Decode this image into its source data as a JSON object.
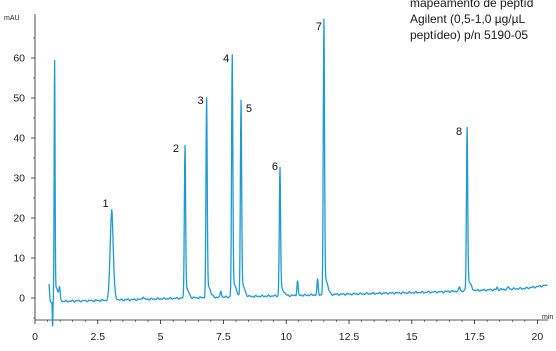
{
  "note": {
    "lines": [
      "mapeamento de peptíd",
      "Agilent (0,5-1,0 µg/µL",
      "peptídeo) p/n 5190-05"
    ]
  },
  "chart_data": {
    "type": "line",
    "xlabel": "min",
    "ylabel": "mAU",
    "xlim": [
      0,
      20.5
    ],
    "ylim": [
      -7.5,
      67
    ],
    "xticks": [
      "0",
      "2.5",
      "5",
      "7.5",
      "10",
      "12.5",
      "15",
      "17.5",
      "20"
    ],
    "yticks": [
      "0",
      "10",
      "20",
      "30",
      "40",
      "50",
      "60"
    ],
    "series_color": "#1e9ad6",
    "baseline": [
      {
        "x": 0.0,
        "y": -1.0
      },
      {
        "x": 2.0,
        "y": -0.7
      },
      {
        "x": 4.0,
        "y": -0.4
      },
      {
        "x": 6.0,
        "y": 0.0
      },
      {
        "x": 8.0,
        "y": 0.3
      },
      {
        "x": 10.0,
        "y": 0.6
      },
      {
        "x": 12.0,
        "y": 0.9
      },
      {
        "x": 14.0,
        "y": 1.2
      },
      {
        "x": 16.0,
        "y": 1.5
      },
      {
        "x": 18.0,
        "y": 2.0
      },
      {
        "x": 19.5,
        "y": 2.4
      },
      {
        "x": 20.4,
        "y": 3.2
      }
    ],
    "peaks": [
      {
        "label": "",
        "x": 0.78,
        "y": 57
      },
      {
        "label": "1",
        "x": 3.05,
        "y": 21
      },
      {
        "label": "2",
        "x": 5.97,
        "y": 37
      },
      {
        "label": "3",
        "x": 6.83,
        "y": 48
      },
      {
        "label": "4",
        "x": 7.85,
        "y": 58.5
      },
      {
        "label": "5",
        "x": 8.2,
        "y": 47.5
      },
      {
        "label": "6",
        "x": 9.75,
        "y": 31.5
      },
      {
        "label": "7",
        "x": 11.5,
        "y": 66.5
      },
      {
        "label": "8",
        "x": 17.2,
        "y": 41
      }
    ],
    "minor_peaks": [
      {
        "x": 0.55,
        "y": 3.5
      },
      {
        "x": 0.98,
        "y": 1.5
      },
      {
        "x": 4.3,
        "y": 0.4
      },
      {
        "x": 7.4,
        "y": 1.8
      },
      {
        "x": 10.45,
        "y": 4.2
      },
      {
        "x": 11.25,
        "y": 4.5
      },
      {
        "x": 16.9,
        "y": 2.8
      },
      {
        "x": 18.4,
        "y": 2.6
      },
      {
        "x": 18.85,
        "y": 2.8
      }
    ],
    "dip": {
      "x": 0.7,
      "y": -7.2
    }
  }
}
